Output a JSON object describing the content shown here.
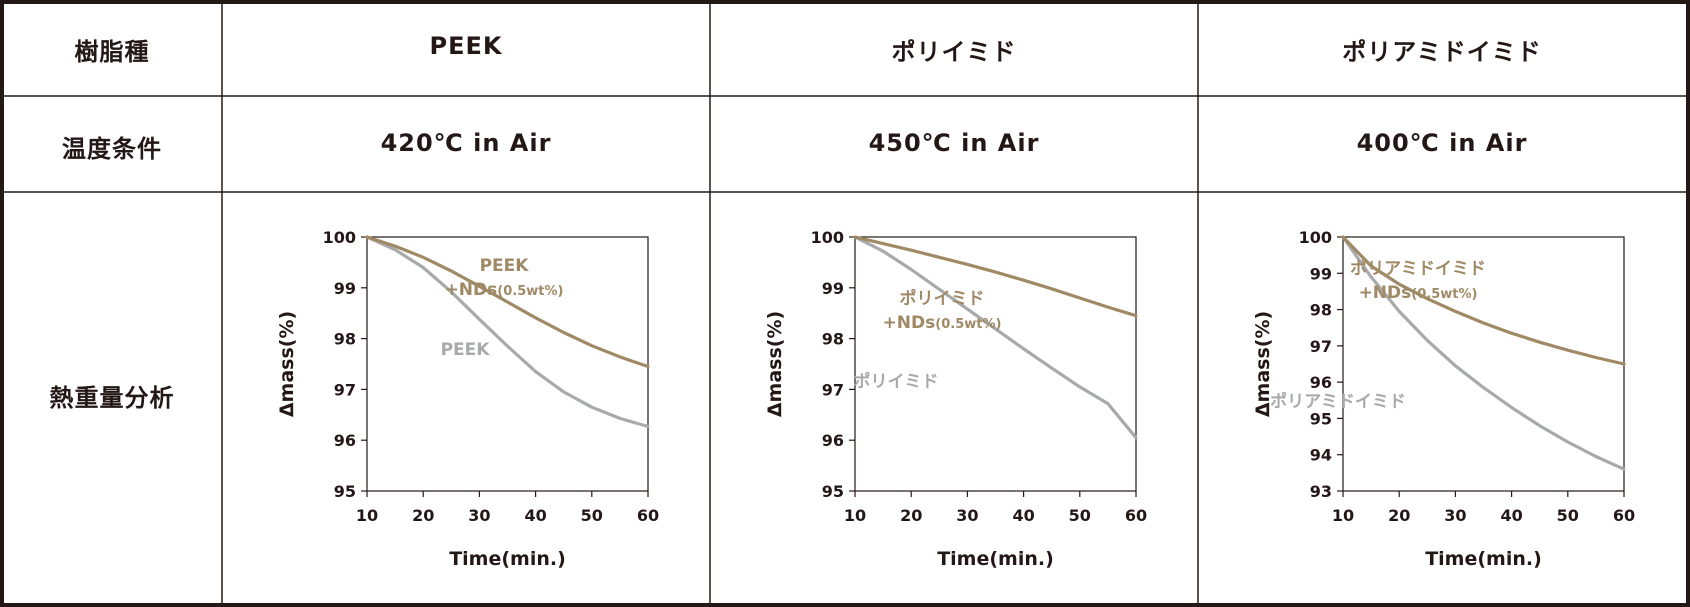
{
  "table": {
    "row_headers": [
      "樹脂種",
      "温度条件",
      "熱重量分析"
    ],
    "columns": [
      {
        "resin": "PEEK",
        "condition": "420℃ in Air"
      },
      {
        "resin": "ポリイミド",
        "condition": "450℃ in Air"
      },
      {
        "resin": "ポリアミドイミド",
        "condition": "400℃ in Air"
      }
    ]
  },
  "colors": {
    "nd_series": "#a08a66",
    "base_series": "#a8a9ab",
    "text": "#231815",
    "border": "#231815"
  },
  "chart_data": [
    {
      "type": "line",
      "xlabel": "Time(min.)",
      "ylabel": "Δmass(%)",
      "xlim": [
        10,
        60
      ],
      "ylim": [
        95,
        100
      ],
      "x_ticks": [
        10,
        20,
        30,
        40,
        50,
        60
      ],
      "y_ticks": [
        95,
        96,
        97,
        98,
        99,
        100
      ],
      "grid": false,
      "x": [
        10,
        15,
        20,
        25,
        30,
        35,
        40,
        45,
        50,
        55,
        60
      ],
      "series": [
        {
          "name": "PEEK\n+NDs(0.5wt%)",
          "label_lines": [
            "PEEK",
            "+NDs",
            "(0.5wt%)"
          ],
          "color": "#a08a66",
          "values": [
            100.0,
            99.82,
            99.6,
            99.33,
            99.03,
            98.72,
            98.41,
            98.12,
            97.86,
            97.64,
            97.45
          ]
        },
        {
          "name": "PEEK",
          "label_lines": [
            "PEEK"
          ],
          "color": "#a8a9ab",
          "values": [
            100.0,
            99.75,
            99.4,
            98.92,
            98.38,
            97.85,
            97.35,
            96.95,
            96.65,
            96.43,
            96.27
          ]
        }
      ]
    },
    {
      "type": "line",
      "xlabel": "Time(min.)",
      "ylabel": "Δmass(%)",
      "xlim": [
        10,
        60
      ],
      "ylim": [
        95,
        100
      ],
      "x_ticks": [
        10,
        20,
        30,
        40,
        50,
        60
      ],
      "y_ticks": [
        95,
        96,
        97,
        98,
        99,
        100
      ],
      "grid": false,
      "x": [
        10,
        15,
        20,
        25,
        30,
        35,
        40,
        45,
        50,
        55,
        60
      ],
      "series": [
        {
          "name": "ポリイミド\n+NDs(0.5wt%)",
          "label_lines": [
            "ポリイミド",
            "+NDs",
            "(0.5wt%)"
          ],
          "color": "#a08a66",
          "values": [
            100.0,
            99.87,
            99.74,
            99.6,
            99.46,
            99.31,
            99.15,
            98.98,
            98.8,
            98.62,
            98.45
          ]
        },
        {
          "name": "ポリイミド",
          "label_lines": [
            "ポリイミド"
          ],
          "color": "#a8a9ab",
          "values": [
            100.0,
            99.72,
            99.36,
            98.97,
            98.58,
            98.19,
            97.8,
            97.42,
            97.05,
            96.72,
            96.05
          ]
        }
      ]
    },
    {
      "type": "line",
      "xlabel": "Time(min.)",
      "ylabel": "Δmass(%)",
      "xlim": [
        10,
        60
      ],
      "ylim": [
        93,
        100
      ],
      "x_ticks": [
        10,
        20,
        30,
        40,
        50,
        60
      ],
      "y_ticks": [
        93,
        94,
        95,
        96,
        97,
        98,
        99,
        100
      ],
      "grid": false,
      "x": [
        10,
        15,
        20,
        25,
        30,
        35,
        40,
        45,
        50,
        55,
        60
      ],
      "series": [
        {
          "name": "ポリアミドイミド\n+NDs(0.5wt%)",
          "label_lines": [
            "ポリアミドイミド",
            "+NDs",
            "(0.5wt%)"
          ],
          "color": "#a08a66",
          "values": [
            100.0,
            99.2,
            98.7,
            98.3,
            97.95,
            97.63,
            97.35,
            97.1,
            96.88,
            96.68,
            96.5
          ]
        },
        {
          "name": "ポリアミドイミド",
          "label_lines": [
            "ポリアミドイミド"
          ],
          "color": "#a8a9ab",
          "values": [
            100.0,
            98.9,
            97.95,
            97.15,
            96.45,
            95.85,
            95.3,
            94.8,
            94.35,
            93.95,
            93.6
          ]
        }
      ]
    }
  ]
}
